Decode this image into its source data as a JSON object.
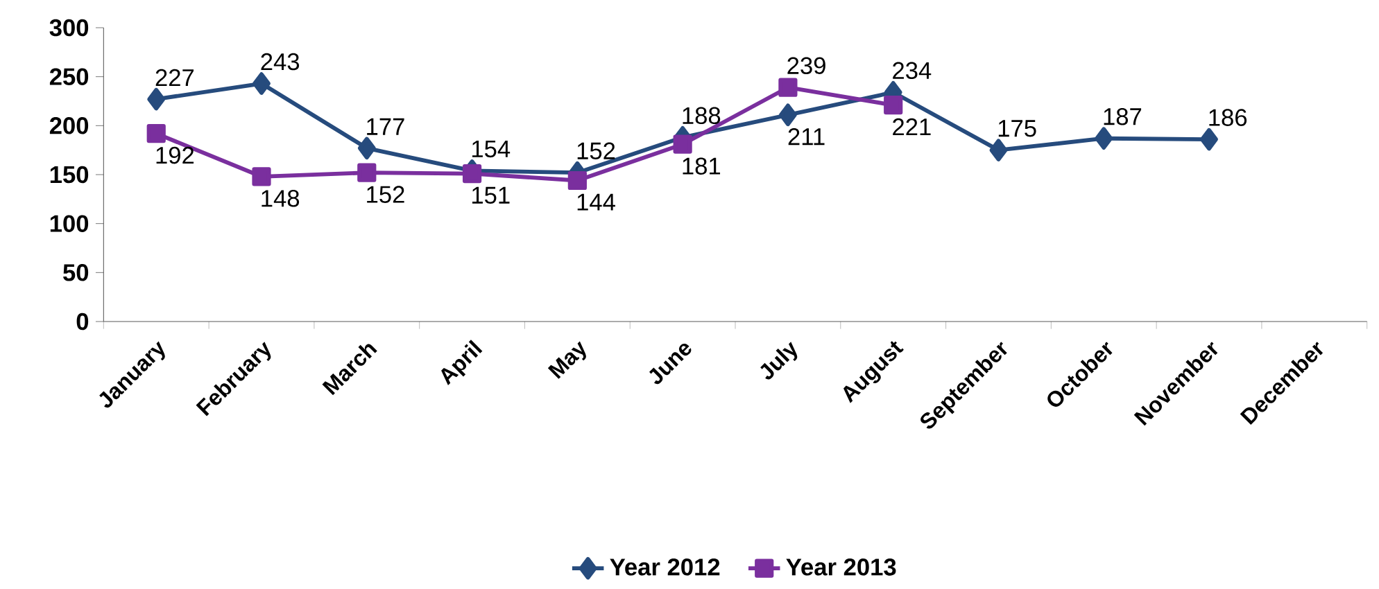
{
  "chart_data": {
    "type": "line",
    "categories": [
      "January",
      "February",
      "March",
      "April",
      "May",
      "June",
      "July",
      "August",
      "September",
      "October",
      "November",
      "December"
    ],
    "series": [
      {
        "name": "Year 2012",
        "color": "#264b7d",
        "marker": "diamond",
        "values": [
          227,
          243,
          177,
          154,
          152,
          188,
          211,
          234,
          175,
          187,
          186,
          null
        ]
      },
      {
        "name": "Year 2013",
        "color": "#7a2f9e",
        "marker": "square",
        "values": [
          192,
          148,
          152,
          151,
          144,
          181,
          239,
          221,
          null,
          null,
          null,
          null
        ]
      }
    ],
    "ylim": [
      0,
      300
    ],
    "yticks": [
      0,
      50,
      100,
      150,
      200,
      250,
      300
    ],
    "data_labels": true,
    "grid": false,
    "legend": "bottom",
    "line_style": "solid"
  }
}
